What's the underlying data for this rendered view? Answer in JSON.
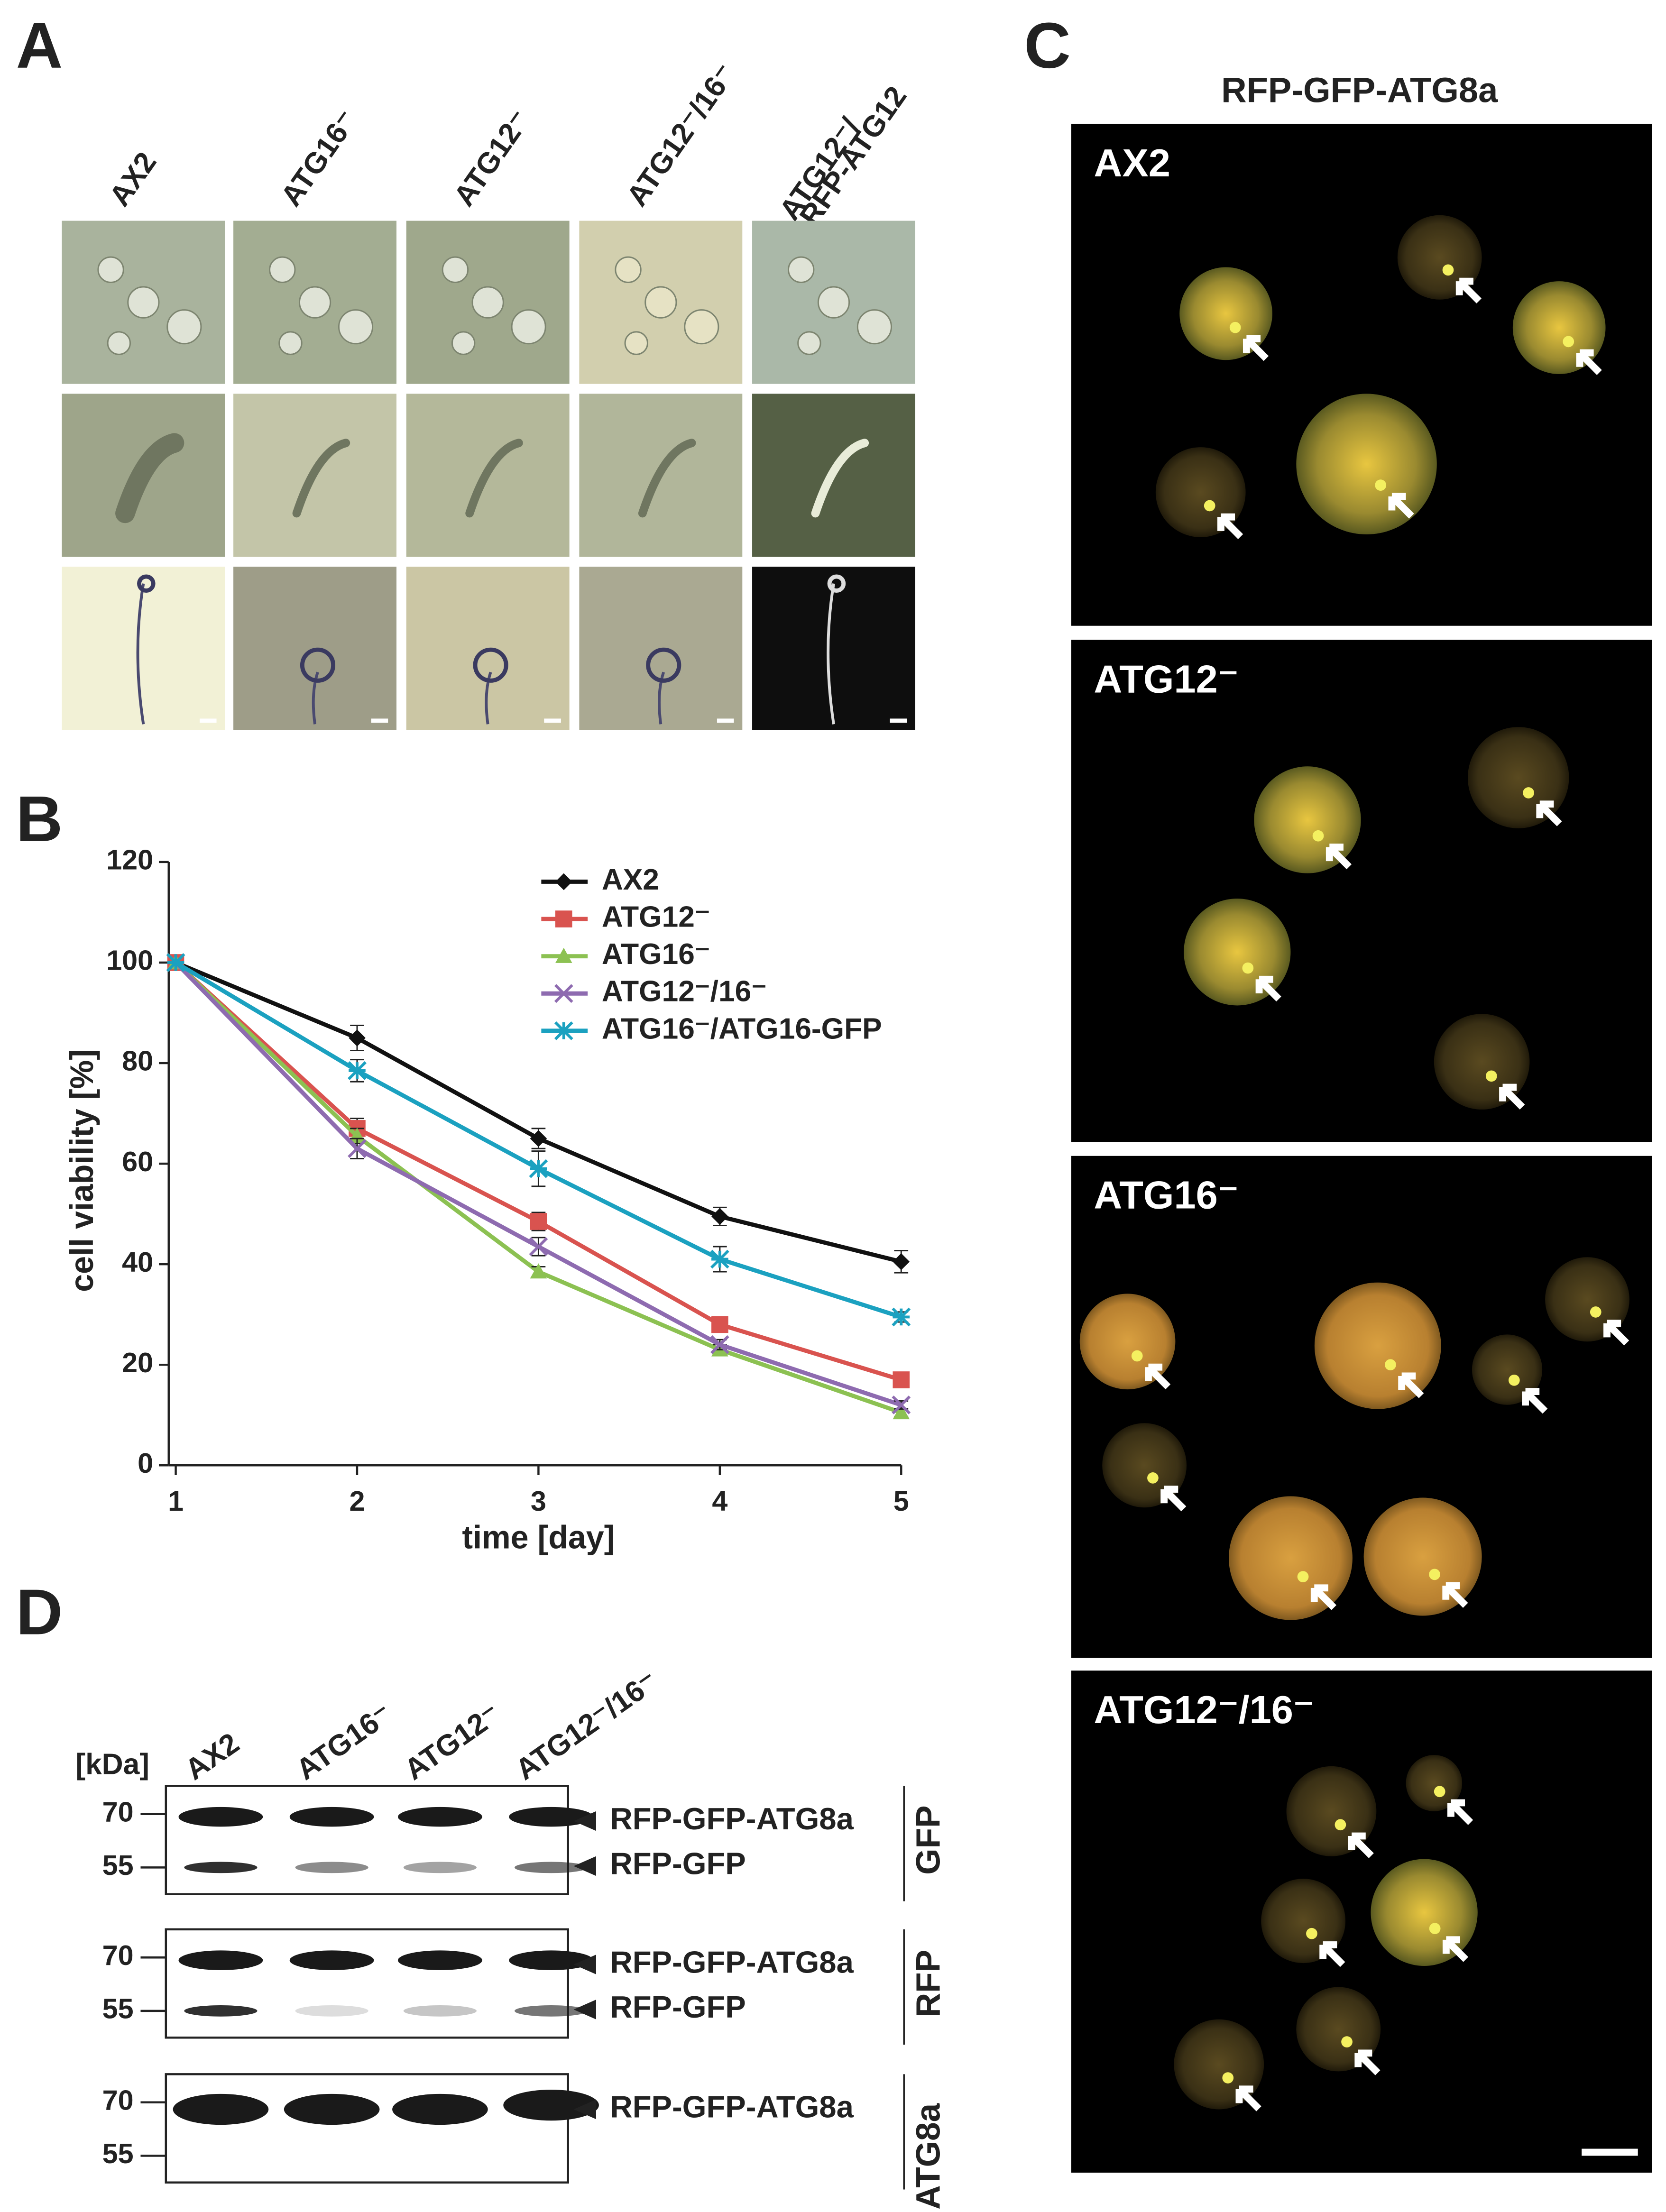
{
  "panel_a": {
    "label": "A",
    "columns": [
      [
        "AX2"
      ],
      [
        "ATG16⁻"
      ],
      [
        "ATG12⁻"
      ],
      [
        "ATG12⁻/16⁻"
      ],
      [
        "ATG12⁻/",
        "RFP-ATG12"
      ]
    ]
  },
  "chart_data": {
    "type": "line",
    "label": "B",
    "x": [
      1,
      2,
      3,
      4,
      5
    ],
    "xlim": [
      1,
      5
    ],
    "xticks": [
      1,
      2,
      3,
      4,
      5
    ],
    "ylim": [
      0,
      120
    ],
    "yticks": [
      0,
      20,
      40,
      60,
      80,
      100,
      120
    ],
    "xlabel": "time [day]",
    "ylabel": "cell viability [%]",
    "series": [
      {
        "name": "AX2",
        "color": "#111111",
        "marker": "diamond",
        "values": [
          100,
          85,
          65,
          49.5,
          40.5
        ],
        "errors": [
          0,
          2.5,
          2,
          1.8,
          2.2
        ]
      },
      {
        "name": "ATG12⁻",
        "color": "#d9534f",
        "marker": "square",
        "values": [
          100,
          67,
          48.5,
          28,
          17
        ],
        "errors": [
          0,
          2,
          1.8,
          1,
          1
        ]
      },
      {
        "name": "ATG16⁻",
        "color": "#8cc152",
        "marker": "triangle",
        "values": [
          100,
          65.5,
          38.5,
          23,
          10.5
        ],
        "errors": [
          0,
          1.5,
          1,
          1,
          0.8
        ]
      },
      {
        "name": "ATG12⁻/16⁻",
        "color": "#8e6bb0",
        "marker": "x",
        "values": [
          100,
          63,
          43.5,
          24,
          12
        ],
        "errors": [
          0,
          2,
          1.8,
          1,
          0.8
        ]
      },
      {
        "name": "ATG16⁻/ATG16-GFP",
        "color": "#1ba1c0",
        "marker": "star",
        "values": [
          100,
          78.5,
          59,
          41,
          29.5
        ],
        "errors": [
          0,
          2.2,
          3.5,
          2.5,
          1
        ]
      }
    ]
  },
  "panel_c": {
    "label": "C",
    "title": "RFP-GFP-ATG8a",
    "images": [
      "AX2",
      "ATG12⁻",
      "ATG16⁻",
      "ATG12⁻/16⁻"
    ]
  },
  "panel_d": {
    "label": "D",
    "unit": "[kDa]",
    "lanes": [
      "AX2",
      "ATG16⁻",
      "ATG12⁻",
      "ATG12⁻/16⁻"
    ],
    "blots": [
      {
        "name": "GFP",
        "markers": [
          70,
          55
        ],
        "bands": [
          "RFP-GFP-ATG8a",
          "RFP-GFP"
        ]
      },
      {
        "name": "RFP",
        "markers": [
          70,
          55
        ],
        "bands": [
          "RFP-GFP-ATG8a",
          "RFP-GFP"
        ]
      },
      {
        "name": "ATG8a",
        "markers": [
          70,
          55
        ],
        "bands": [
          "RFP-GFP-ATG8a"
        ]
      }
    ]
  }
}
